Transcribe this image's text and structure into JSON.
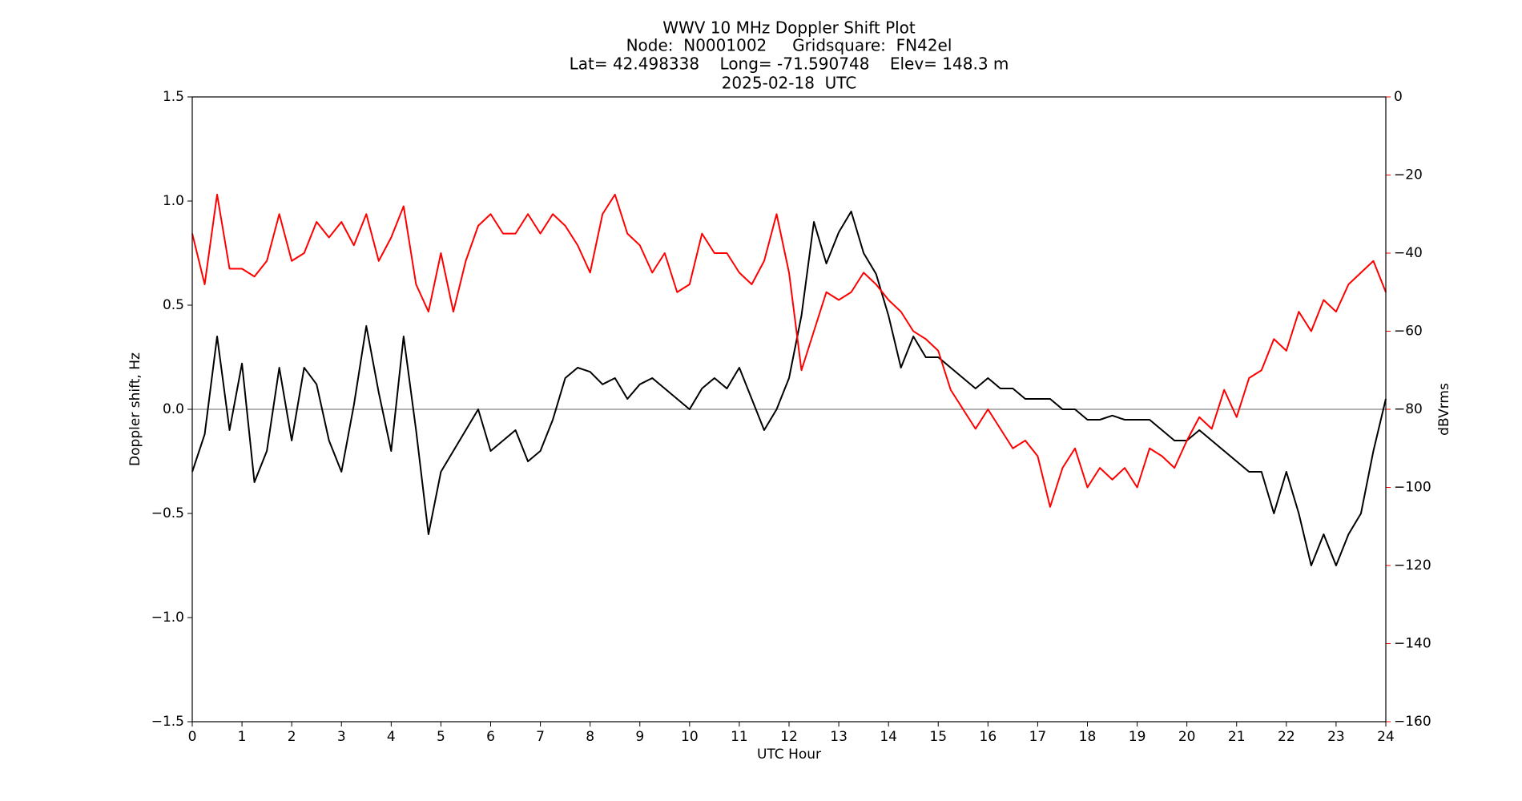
{
  "chart_data": {
    "type": "line",
    "title": [
      "WWV 10 MHz Doppler Shift Plot",
      "Node:  N0001002     Gridsquare:  FN42el",
      "Lat= 42.498338    Long= -71.590748    Elev= 148.3 m",
      "2025-02-18  UTC"
    ],
    "x_label": "UTC Hour",
    "y_label": "Doppler shift, Hz",
    "y2_label": "dBVrms",
    "x": [
      0,
      0.25,
      0.5,
      0.75,
      1,
      1.25,
      1.5,
      1.75,
      2,
      2.25,
      2.5,
      2.75,
      3,
      3.25,
      3.5,
      3.75,
      4,
      4.25,
      4.5,
      4.75,
      5,
      5.25,
      5.5,
      5.75,
      6,
      6.25,
      6.5,
      6.75,
      7,
      7.25,
      7.5,
      7.75,
      8,
      8.25,
      8.5,
      8.75,
      9,
      9.25,
      9.5,
      9.75,
      10,
      10.25,
      10.5,
      10.75,
      11,
      11.25,
      11.5,
      11.75,
      12,
      12.25,
      12.5,
      12.75,
      13,
      13.25,
      13.5,
      13.75,
      14,
      14.25,
      14.5,
      14.75,
      15,
      15.25,
      15.5,
      15.75,
      16,
      16.25,
      16.5,
      16.75,
      17,
      17.25,
      17.5,
      17.75,
      18,
      18.25,
      18.5,
      18.75,
      19,
      19.25,
      19.5,
      19.75,
      20,
      20.25,
      20.5,
      20.75,
      21,
      21.25,
      21.5,
      21.75,
      22,
      22.25,
      22.5,
      22.75,
      23,
      23.25,
      23.5,
      23.75,
      24
    ],
    "series": [
      {
        "name": "Doppler shift",
        "color": "#000000",
        "axis": "y",
        "values": [
          -0.3,
          -0.12,
          0.35,
          -0.1,
          0.22,
          -0.35,
          -0.2,
          0.2,
          -0.15,
          0.2,
          0.12,
          -0.15,
          -0.3,
          0.02,
          0.4,
          0.08,
          -0.2,
          0.35,
          -0.1,
          -0.6,
          -0.3,
          -0.2,
          -0.1,
          0.0,
          -0.2,
          -0.15,
          -0.1,
          -0.25,
          -0.2,
          -0.05,
          0.15,
          0.2,
          0.18,
          0.12,
          0.15,
          0.05,
          0.12,
          0.15,
          0.1,
          0.05,
          0.0,
          0.1,
          0.15,
          0.1,
          0.2,
          0.05,
          -0.1,
          0.0,
          0.15,
          0.45,
          0.9,
          0.7,
          0.85,
          0.95,
          0.75,
          0.65,
          0.45,
          0.2,
          0.35,
          0.25,
          0.25,
          0.2,
          0.15,
          0.1,
          0.15,
          0.1,
          0.1,
          0.05,
          0.05,
          0.05,
          0.0,
          0.0,
          -0.05,
          -0.05,
          -0.03,
          -0.05,
          -0.05,
          -0.05,
          -0.1,
          -0.15,
          -0.15,
          -0.1,
          -0.15,
          -0.2,
          -0.25,
          -0.3,
          -0.3,
          -0.5,
          -0.3,
          -0.5,
          -0.75,
          -0.6,
          -0.75,
          -0.6,
          -0.5,
          -0.2,
          0.05
        ]
      },
      {
        "name": "dBVrms",
        "color": "#ff0000",
        "axis": "y2",
        "values": [
          -35,
          -48,
          -25,
          -44,
          -44,
          -46,
          -42,
          -30,
          -42,
          -40,
          -32,
          -36,
          -32,
          -38,
          -30,
          -42,
          -36,
          -28,
          -48,
          -55,
          -40,
          -55,
          -42,
          -33,
          -30,
          -35,
          -35,
          -30,
          -35,
          -30,
          -33,
          -38,
          -45,
          -30,
          -25,
          -35,
          -38,
          -45,
          -40,
          -50,
          -48,
          -35,
          -40,
          -40,
          -45,
          -48,
          -42,
          -30,
          -45,
          -70,
          -60,
          -50,
          -52,
          -50,
          -45,
          -48,
          -52,
          -55,
          -60,
          -62,
          -65,
          -75,
          -80,
          -85,
          -80,
          -85,
          -90,
          -88,
          -92,
          -105,
          -95,
          -90,
          -100,
          -95,
          -98,
          -95,
          -100,
          -90,
          -92,
          -95,
          -88,
          -82,
          -85,
          -75,
          -82,
          -72,
          -70,
          -62,
          -65,
          -55,
          -60,
          -52,
          -55,
          -48,
          -45,
          -42,
          -50
        ]
      }
    ],
    "xlim": [
      0,
      24
    ],
    "xticks": [
      0,
      1,
      2,
      3,
      4,
      5,
      6,
      7,
      8,
      9,
      10,
      11,
      12,
      13,
      14,
      15,
      16,
      17,
      18,
      19,
      20,
      21,
      22,
      23,
      24
    ],
    "ylim": [
      -1.5,
      1.5
    ],
    "yticks": [
      {
        "value": -1.5,
        "label": "−1.5"
      },
      {
        "value": -1.0,
        "label": "−1.0"
      },
      {
        "value": -0.5,
        "label": "−0.5"
      },
      {
        "value": 0,
        "label": "0.0"
      },
      0.5,
      {
        "value": 1.0,
        "label": "1.0"
      },
      1.5
    ],
    "y2lim": [
      -160,
      0
    ],
    "y2ticks": [
      {
        "value": -160,
        "label": "−160"
      },
      {
        "value": -140,
        "label": "−140"
      },
      {
        "value": -120,
        "label": "−120"
      },
      {
        "value": -100,
        "label": "−100"
      },
      {
        "value": -80,
        "label": "−80"
      },
      {
        "value": -60,
        "label": "−60"
      },
      {
        "value": -40,
        "label": "−40"
      },
      {
        "value": -20,
        "label": "−20"
      },
      0
    ],
    "y2_color": "#ff0000",
    "hline": 0,
    "hline_color": "#999999",
    "grid": false
  }
}
